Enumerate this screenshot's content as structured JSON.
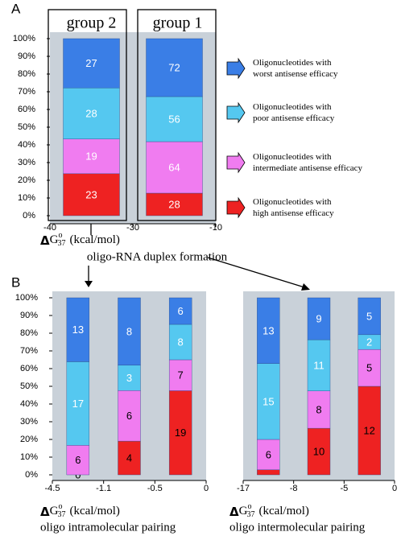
{
  "chart_data": [
    {
      "type": "bar",
      "stacking": "percent",
      "panel": "A",
      "categories": [
        "group 2",
        "group 1"
      ],
      "x_edges": [
        -40,
        -30,
        -10
      ],
      "series": [
        {
          "name": "Oligonucleotides with\nhigh antisense efficacy",
          "color": "#ee2222",
          "values": [
            23,
            28
          ]
        },
        {
          "name": "Oligonucleotides with\nintermediate antisense efficacy",
          "color": "#f07cf0",
          "values": [
            19,
            64
          ]
        },
        {
          "name": "Oligonucleotides with\npoor antisense efficacy",
          "color": "#55c8f0",
          "values": [
            28,
            56
          ]
        },
        {
          "name": "Oligonucleotides with\nworst antisense efficacy",
          "color": "#3a7ee6",
          "values": [
            27,
            72
          ]
        }
      ],
      "ylim": [
        0,
        100
      ],
      "yticks": [
        {
          "value": 0,
          "label": "0%"
        },
        {
          "value": 10,
          "label": "10%"
        },
        {
          "value": 20,
          "label": "20%"
        },
        {
          "value": 30,
          "label": "30%"
        },
        {
          "value": 40,
          "label": "40%"
        },
        {
          "value": 50,
          "label": "50%"
        },
        {
          "value": 60,
          "label": "60%"
        },
        {
          "value": 70,
          "label": "70%"
        },
        {
          "value": 80,
          "label": "80%"
        },
        {
          "value": 90,
          "label": "90%"
        },
        {
          "value": 100,
          "label": "100%"
        }
      ],
      "x_label": {
        "delta": "Δ",
        "symbol": "G",
        "sup": "o",
        "sub": "37",
        "unit": "(kcal/mol)"
      },
      "x_sublabel": "oligo-RNA duplex formation"
    },
    {
      "type": "bar",
      "stacking": "percent",
      "panel": "B",
      "x_edges": [
        -4.5,
        -1.1,
        -0.5,
        0
      ],
      "series": [
        {
          "color": "#ee2222",
          "values": [
            0,
            4,
            19
          ]
        },
        {
          "color": "#f07cf0",
          "values": [
            6,
            6,
            7
          ]
        },
        {
          "color": "#55c8f0",
          "values": [
            17,
            3,
            8
          ]
        },
        {
          "color": "#3a7ee6",
          "values": [
            13,
            8,
            6
          ]
        }
      ],
      "ylim": [
        0,
        100
      ],
      "yticks": [
        {
          "value": 0,
          "label": "0%"
        },
        {
          "value": 10,
          "label": "10%"
        },
        {
          "value": 20,
          "label": "20%"
        },
        {
          "value": 30,
          "label": "30%"
        },
        {
          "value": 40,
          "label": "40%"
        },
        {
          "value": 50,
          "label": "50%"
        },
        {
          "value": 60,
          "label": "60%"
        },
        {
          "value": 70,
          "label": "70%"
        },
        {
          "value": 80,
          "label": "80%"
        },
        {
          "value": 90,
          "label": "90%"
        },
        {
          "value": 100,
          "label": "100%"
        }
      ],
      "x_label": {
        "delta": "Δ",
        "symbol": "G",
        "sup": "o",
        "sub": "37",
        "unit": "(kcal/mol)"
      },
      "x_sublabel": "oligo intramolecular pairing"
    },
    {
      "type": "bar",
      "stacking": "percent",
      "x_edges": [
        -17,
        -8,
        -5,
        0
      ],
      "series": [
        {
          "color": "#ee2222",
          "values": [
            1,
            10,
            12
          ],
          "value_labels": [
            null,
            "10",
            "12"
          ]
        },
        {
          "color": "#f07cf0",
          "values": [
            6,
            8,
            5
          ]
        },
        {
          "color": "#55c8f0",
          "values": [
            15,
            11,
            2
          ]
        },
        {
          "color": "#3a7ee6",
          "values": [
            13,
            9,
            5
          ]
        }
      ],
      "ylim": [
        0,
        100
      ],
      "x_label": {
        "delta": "Δ",
        "symbol": "G",
        "sup": "o",
        "sub": "37",
        "unit": "(kcal/mol)"
      },
      "x_sublabel": "oligo intermolecular pairing"
    }
  ]
}
